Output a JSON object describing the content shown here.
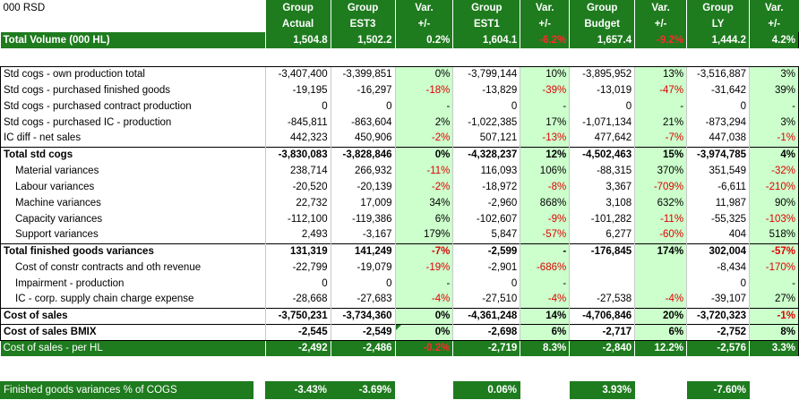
{
  "unit_label": "000 RSD",
  "header_row1": [
    "Group",
    "Group",
    "Var.",
    "Group",
    "Var.",
    "Group",
    "Var.",
    "Group",
    "Var."
  ],
  "header_row2": [
    "Actual",
    "EST3",
    "+/-",
    "EST1",
    "+/-",
    "Budget",
    "+/-",
    "LY",
    "+/-"
  ],
  "volume": {
    "label": "Total Volume (000 HL)",
    "values": [
      "1,504.8",
      "1,502.2",
      "0.2%",
      "1,604.1",
      "-6.2%",
      "1,657.4",
      "-9.2%",
      "1,444.2",
      "4.2%"
    ]
  },
  "rows": [
    {
      "label": "Std cogs - own production total",
      "values": [
        "-3,407,400",
        "-3,399,851",
        "0%",
        "-3,799,144",
        "10%",
        "-3,895,952",
        "13%",
        "-3,516,887",
        "3%"
      ]
    },
    {
      "label": "Std cogs - purchased finished goods",
      "values": [
        "-19,195",
        "-16,297",
        "-18%",
        "-13,829",
        "-39%",
        "-13,019",
        "-47%",
        "-31,642",
        "39%"
      ]
    },
    {
      "label": "Std cogs - purchased contract production",
      "values": [
        "0",
        "0",
        "-",
        "0",
        "-",
        "0",
        "-",
        "0",
        "-"
      ]
    },
    {
      "label": "Std cogs - purchased IC - production",
      "values": [
        "-845,811",
        "-863,604",
        "2%",
        "-1,022,385",
        "17%",
        "-1,071,134",
        "21%",
        "-873,294",
        "3%"
      ]
    },
    {
      "label": "IC diff - net sales",
      "values": [
        "442,323",
        "450,906",
        "-2%",
        "507,121",
        "-13%",
        "477,642",
        "-7%",
        "447,038",
        "-1%"
      ]
    },
    {
      "label": "Total std cogs",
      "values": [
        "-3,830,083",
        "-3,828,846",
        "0%",
        "-4,328,237",
        "12%",
        "-4,502,463",
        "15%",
        "-3,974,785",
        "4%"
      ]
    },
    {
      "label": "Material variances",
      "values": [
        "238,714",
        "266,932",
        "-11%",
        "116,093",
        "106%",
        "-88,315",
        "370%",
        "351,549",
        "-32%"
      ]
    },
    {
      "label": "Labour variances",
      "values": [
        "-20,520",
        "-20,139",
        "-2%",
        "-18,972",
        "-8%",
        "3,367",
        "-709%",
        "-6,611",
        "-210%"
      ]
    },
    {
      "label": "Machine variances",
      "values": [
        "22,732",
        "17,009",
        "34%",
        "-2,960",
        "868%",
        "3,108",
        "632%",
        "11,987",
        "90%"
      ]
    },
    {
      "label": "Capacity variances",
      "values": [
        "-112,100",
        "-119,386",
        "6%",
        "-102,607",
        "-9%",
        "-101,282",
        "-11%",
        "-55,325",
        "-103%"
      ]
    },
    {
      "label": "Support variances",
      "values": [
        "2,493",
        "-3,167",
        "179%",
        "5,847",
        "-57%",
        "6,277",
        "-60%",
        "404",
        "518%"
      ]
    },
    {
      "label": "Total finished goods variances",
      "values": [
        "131,319",
        "141,249",
        "-7%",
        "-2,599",
        "-",
        "-176,845",
        "174%",
        "302,004",
        "-57%"
      ]
    },
    {
      "label": "Cost of constr contracts and oth revenue",
      "values": [
        "-22,799",
        "-19,079",
        "-19%",
        "-2,901",
        "-686%",
        "",
        "",
        "-8,434",
        "-170%"
      ]
    },
    {
      "label": "Impairment - production",
      "values": [
        "0",
        "0",
        "-",
        "0",
        "-",
        "",
        "",
        "0",
        "-"
      ]
    },
    {
      "label": "IC - corp. supply chain charge expense",
      "values": [
        "-28,668",
        "-27,683",
        "-4%",
        "-27,510",
        "-4%",
        "-27,538",
        "-4%",
        "-39,107",
        "27%"
      ]
    },
    {
      "label": "Cost of sales",
      "values": [
        "-3,750,231",
        "-3,734,360",
        "0%",
        "-4,361,248",
        "14%",
        "-4,706,846",
        "20%",
        "-3,720,323",
        "-1%"
      ]
    },
    {
      "label": "Cost of sales BMIX",
      "values": [
        "-2,545",
        "-2,549",
        "0%",
        "-2,698",
        "6%",
        "-2,717",
        "6%",
        "-2,752",
        "8%"
      ]
    }
  ],
  "per_hl": {
    "label": "Cost of sales - per HL",
    "values": [
      "-2,492",
      "-2,486",
      "-0.2%",
      "-2,719",
      "8.3%",
      "-2,840",
      "12.2%",
      "-2,576",
      "3.3%"
    ]
  },
  "footer": {
    "label": "Finished goods variances % of COGS",
    "actual": "-3.43%",
    "est3": "-3.69%",
    "est1": "0.06%",
    "budget": "3.93%",
    "ly": "-7.60%"
  },
  "colors": {
    "header_green": "#1e7b1e",
    "pct_bg": "#ccffcc",
    "negative": "#e00000"
  }
}
